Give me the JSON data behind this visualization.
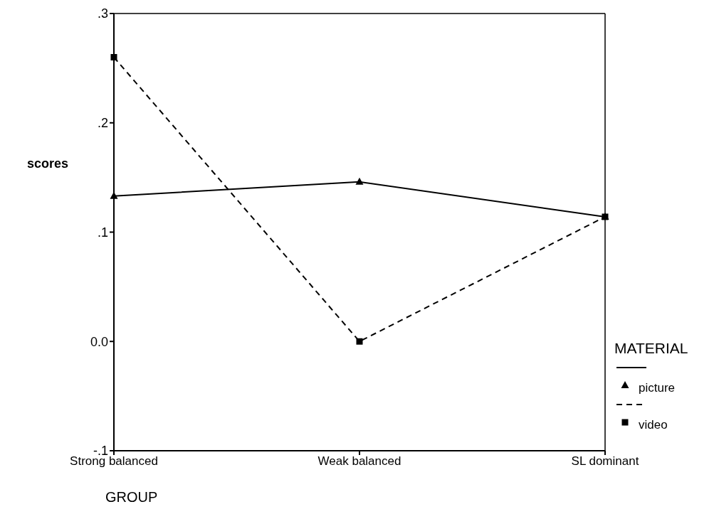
{
  "chart_data": {
    "type": "line",
    "xlabel": "GROUP",
    "ylabel": "scores",
    "legend_title": "MATERIAL",
    "legend": "bottom right",
    "categories": [
      "Strong balanced",
      "Weak balanced",
      "SL dominant"
    ],
    "series": [
      {
        "name": "picture",
        "color": "#000000",
        "values": [
          0.133,
          0.146,
          0.114
        ],
        "marker": "triangle",
        "line_style": "solid"
      },
      {
        "name": "video",
        "color": "#000000",
        "values": [
          0.26,
          0.0,
          0.114
        ],
        "marker": "square",
        "line_style": "dashed"
      }
    ],
    "ylim": [
      -0.1,
      0.3
    ],
    "yticks": [
      {
        "value": -0.1,
        "label": "-.1"
      },
      {
        "value": 0,
        "label": "0.0"
      },
      {
        "value": 0.1,
        "label": ".1"
      },
      {
        "value": 0.2,
        "label": ".2"
      },
      {
        "value": 0.3,
        "label": ".3"
      }
    ],
    "grid": false
  }
}
